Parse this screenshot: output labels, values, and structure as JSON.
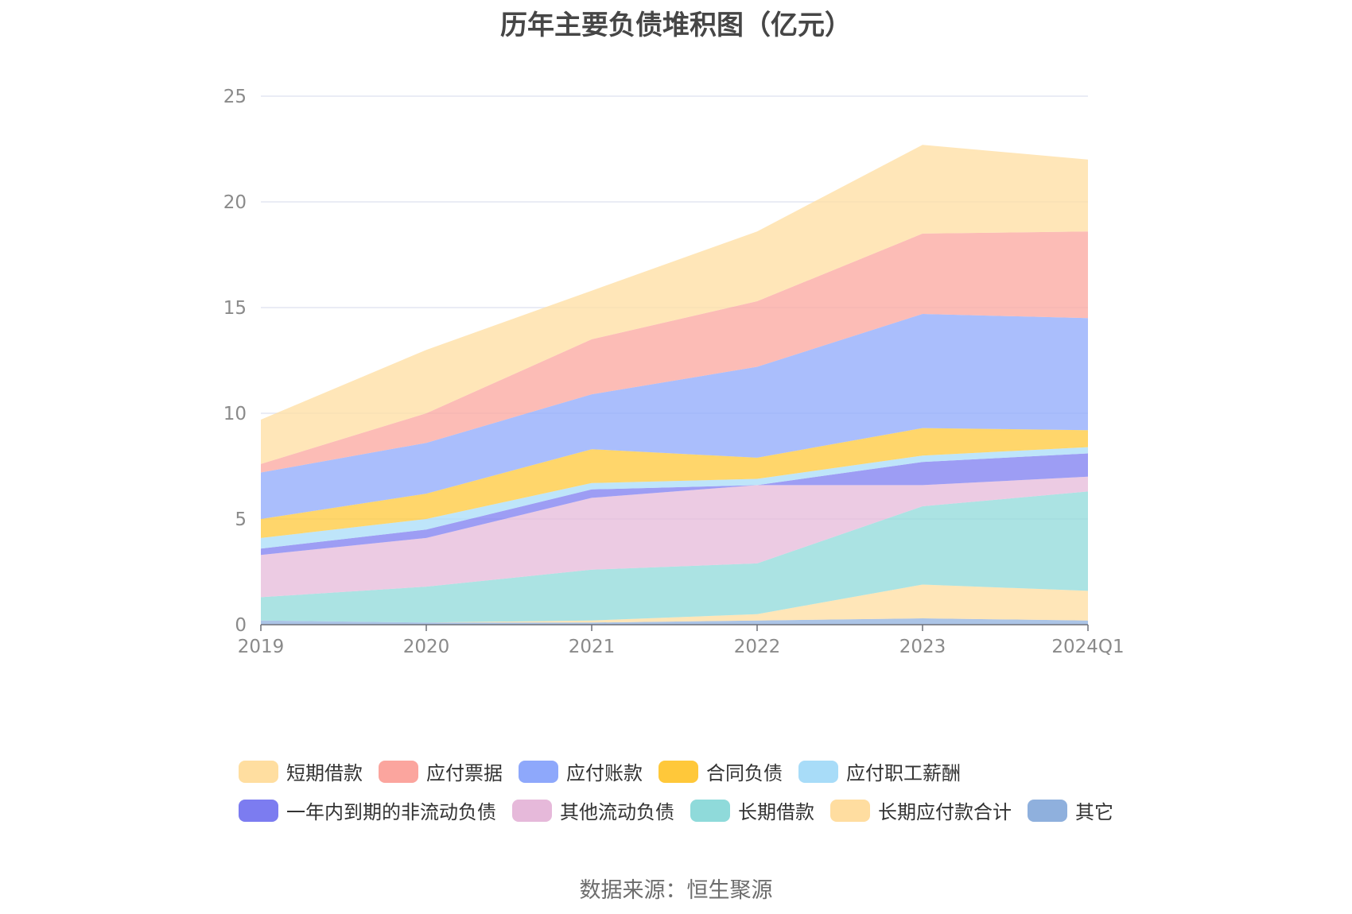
{
  "chart_data": {
    "type": "area",
    "stacked": true,
    "title": "历年主要负债堆积图（亿元）",
    "categories": [
      "2019",
      "2020",
      "2021",
      "2022",
      "2023",
      "2024Q1"
    ],
    "y_ticks": [
      0,
      5,
      10,
      15,
      20,
      25
    ],
    "ylim": [
      0,
      25
    ],
    "grid": true,
    "legend_position": "bottom",
    "source": "数据来源：恒生聚源",
    "series": [
      {
        "name": "其它",
        "color": "#8fb0dd",
        "values": [
          0.2,
          0.1,
          0.1,
          0.2,
          0.3,
          0.2
        ]
      },
      {
        "name": "长期应付款合计",
        "color": "#ffdda0",
        "values": [
          0.0,
          0.0,
          0.1,
          0.3,
          1.6,
          1.4
        ]
      },
      {
        "name": "长期借款",
        "color": "#8fdada",
        "values": [
          1.1,
          1.7,
          2.4,
          2.4,
          3.7,
          4.7
        ]
      },
      {
        "name": "其他流动负债",
        "color": "#e6b9da",
        "values": [
          2.0,
          2.3,
          3.4,
          3.7,
          1.0,
          0.7
        ]
      },
      {
        "name": "一年内到期的非流动负债",
        "color": "#7c7cf0",
        "values": [
          0.3,
          0.4,
          0.4,
          0.0,
          1.1,
          1.1
        ]
      },
      {
        "name": "应付职工薪酬",
        "color": "#a8dcf8",
        "values": [
          0.5,
          0.5,
          0.3,
          0.3,
          0.3,
          0.3
        ]
      },
      {
        "name": "合同负债",
        "color": "#ffc83a",
        "values": [
          0.9,
          1.2,
          1.6,
          1.0,
          1.3,
          0.8
        ]
      },
      {
        "name": "应付账款",
        "color": "#8ea8fb",
        "values": [
          2.2,
          2.4,
          2.6,
          4.3,
          5.4,
          5.3
        ]
      },
      {
        "name": "应付票据",
        "color": "#fba59e",
        "values": [
          0.4,
          1.4,
          2.6,
          3.1,
          3.8,
          4.1
        ]
      },
      {
        "name": "短期借款",
        "color": "#ffdea0",
        "values": [
          2.1,
          3.0,
          2.3,
          3.3,
          4.2,
          3.4
        ]
      }
    ],
    "legend_rows": [
      [
        "短期借款",
        "应付票据",
        "应付账款",
        "合同负债",
        "应付职工薪酬"
      ],
      [
        "一年内到期的非流动负债",
        "其他流动负债",
        "长期借款",
        "长期应付款合计",
        "其它"
      ]
    ]
  }
}
